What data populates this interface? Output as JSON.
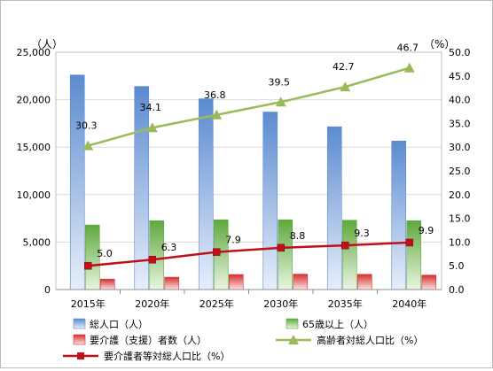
{
  "chart_data": {
    "type": "bar",
    "categories": [
      "2015年",
      "2020年",
      "2025年",
      "2030年",
      "2035年",
      "2040年"
    ],
    "y_left": {
      "unit": "（人）",
      "ylim": [
        0,
        25000
      ],
      "ticks": [
        "0",
        "5,000",
        "10,000",
        "15,000",
        "20,000",
        "25,000"
      ]
    },
    "y_right": {
      "unit": "（%）",
      "ylim": [
        0,
        50
      ],
      "ticks": [
        "0.0",
        "5.0",
        "10.0",
        "15.0",
        "20.0",
        "25.0",
        "30.0",
        "35.0",
        "40.0",
        "45.0",
        "50.0"
      ]
    },
    "bar_series": [
      {
        "name": "総人口（人）",
        "values": [
          22600,
          21400,
          20100,
          18700,
          17150,
          15650
        ],
        "color_top": "#5b8bd0",
        "color_bottom": "#e8eefa"
      },
      {
        "name": "65歳以上（人）",
        "values": [
          6800,
          7250,
          7350,
          7350,
          7300,
          7250
        ],
        "color_top": "#5fa83d",
        "color_bottom": "#eaf5e2"
      },
      {
        "name": "要介護（支援）者数（人）",
        "values": [
          1100,
          1300,
          1580,
          1620,
          1600,
          1520
        ],
        "color_top": "#d63030",
        "color_bottom": "#fbe3e3"
      }
    ],
    "line_series": [
      {
        "name": "高齢者対総人口比（%）",
        "values": [
          30.3,
          34.1,
          36.8,
          39.5,
          42.7,
          46.7
        ],
        "labels": [
          "30.3",
          "34.1",
          "36.8",
          "39.5",
          "42.7",
          "46.7"
        ],
        "color": "#9bbb59",
        "marker": "triangle"
      },
      {
        "name": "要介護者等対総人口比（%）",
        "values": [
          5.0,
          6.3,
          7.9,
          8.8,
          9.3,
          9.9
        ],
        "labels": [
          "5.0",
          "6.3",
          "7.9",
          "8.8",
          "9.3",
          "9.9"
        ],
        "color": "#c0101a",
        "marker": "square"
      }
    ],
    "grid": true,
    "legend_position": "bottom"
  }
}
